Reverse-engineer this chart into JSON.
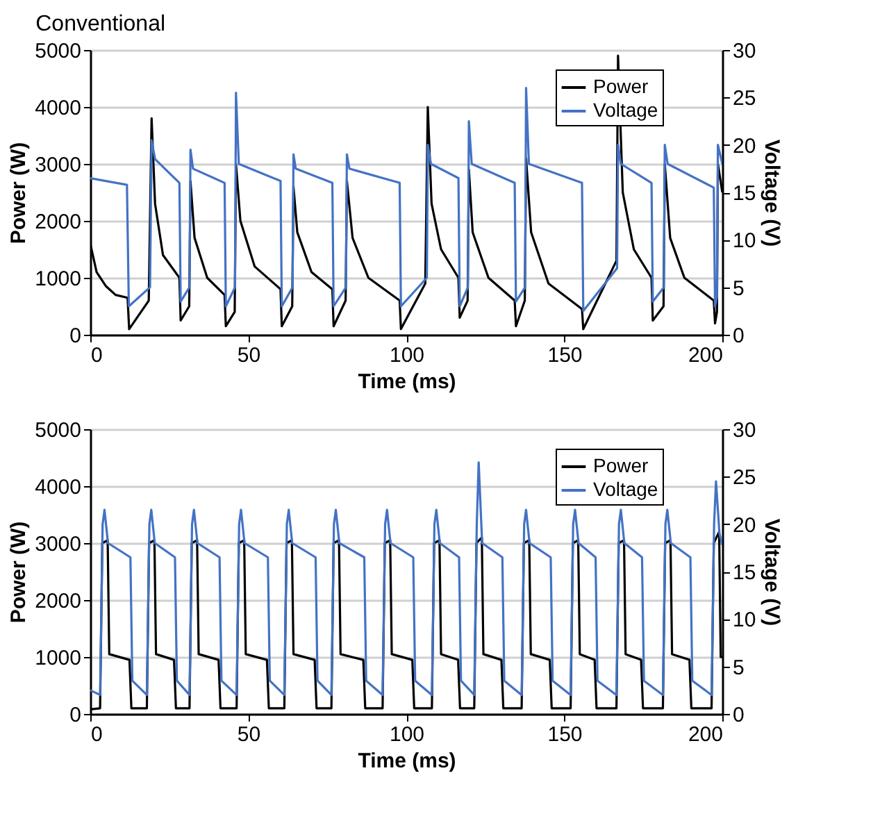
{
  "chart_data": [
    {
      "type": "line",
      "title": "Conventional",
      "xlabel": "Time (ms)",
      "ylabel": "Power (W)",
      "y2label": "Voltage (V)",
      "xlim": [
        0,
        200
      ],
      "xticks": [
        0,
        50,
        100,
        150,
        200
      ],
      "ylim": [
        0,
        5000
      ],
      "yticks": [
        0,
        1000,
        2000,
        3000,
        4000,
        5000
      ],
      "y2lim": [
        0,
        30
      ],
      "y2ticks": [
        0,
        5,
        10,
        15,
        20,
        25,
        30
      ],
      "grid": "y",
      "legend": "top right",
      "marker": "none",
      "line_style": "solid",
      "series": [
        {
          "name": "Power",
          "color": "#000000",
          "x": [
            0,
            2,
            5,
            8,
            11.8,
            12.3,
            18.5,
            19.4,
            20.5,
            23,
            28.2,
            28.6,
            31.3,
            31.7,
            33,
            37,
            42.5,
            42.9,
            45.7,
            46.1,
            47.5,
            52,
            60.2,
            60.6,
            63.9,
            64.3,
            65.5,
            70,
            76.6,
            77,
            80.8,
            81.2,
            83,
            88,
            97.9,
            98.3,
            106,
            106.8,
            108,
            111,
            116.5,
            116.9,
            119.4,
            119.8,
            121,
            126,
            134.3,
            134.7,
            137.5,
            137.9,
            139.5,
            145,
            155.6,
            156,
            166.5,
            167,
            168.5,
            172,
            177.6,
            178,
            181.4,
            181.8,
            183.5,
            188,
            197.3,
            197.7,
            198.3,
            198.6,
            200
          ],
          "values": [
            1600,
            1100,
            850,
            700,
            650,
            100,
            600,
            3800,
            2300,
            1400,
            1000,
            250,
            500,
            2700,
            1700,
            1000,
            700,
            150,
            400,
            3000,
            2000,
            1200,
            800,
            150,
            500,
            2600,
            1800,
            1100,
            800,
            150,
            600,
            2700,
            1700,
            1000,
            600,
            100,
            900,
            4000,
            2300,
            1500,
            1000,
            300,
            600,
            2900,
            1800,
            1000,
            600,
            150,
            600,
            3100,
            1800,
            900,
            450,
            100,
            1300,
            4900,
            2500,
            1500,
            1000,
            250,
            500,
            3000,
            1700,
            1000,
            600,
            200,
            400,
            3000,
            2500
          ]
        },
        {
          "name": "Voltage",
          "color": "#4472c4",
          "axis": "y2",
          "x": [
            0,
            11.6,
            12.2,
            18.9,
            19.4,
            20.5,
            28.2,
            28.6,
            31.4,
            31.7,
            32.5,
            42.5,
            42.9,
            45.8,
            46.1,
            47,
            60.2,
            60.6,
            64,
            64.3,
            65,
            76.6,
            77,
            80.9,
            81.2,
            82,
            97.9,
            98.3,
            106.5,
            106.8,
            107.8,
            116.5,
            116.9,
            119.5,
            119.8,
            120.7,
            134.3,
            134.7,
            137.6,
            137.9,
            138.8,
            155.6,
            156,
            166.7,
            167,
            167.9,
            177.6,
            178,
            181.5,
            181.8,
            182.7,
            197.3,
            197.7,
            198.3,
            198.6,
            200
          ],
          "values": [
            16.5,
            15.8,
            3,
            5,
            20.5,
            18.5,
            16,
            3.5,
            5,
            19.5,
            17.5,
            16,
            3,
            5,
            25.5,
            18,
            16.2,
            3,
            5,
            19,
            17.5,
            16,
            3,
            5,
            19,
            17.5,
            16,
            3,
            6,
            20,
            18,
            16.5,
            3,
            5,
            22.5,
            18,
            16,
            3.5,
            5,
            26,
            18,
            16,
            2.5,
            7,
            20,
            18,
            16,
            3.5,
            5,
            20,
            18,
            15.5,
            3,
            4,
            20,
            18
          ]
        }
      ]
    },
    {
      "type": "line",
      "xlabel": "Time (ms)",
      "ylabel": "Power (W)",
      "y2label": "Voltage (V)",
      "xlim": [
        0,
        200
      ],
      "xticks": [
        0,
        50,
        100,
        150,
        200
      ],
      "ylim": [
        0,
        5000
      ],
      "yticks": [
        0,
        1000,
        2000,
        3000,
        4000,
        5000
      ],
      "y2lim": [
        0,
        30
      ],
      "y2ticks": [
        0,
        5,
        10,
        15,
        20,
        25,
        30
      ],
      "grid": "y",
      "legend": "top right",
      "marker": "none",
      "line_style": "solid",
      "series": [
        {
          "name": "Power",
          "color": "#000000",
          "x": [
            0,
            3.1,
            3.8,
            5.5,
            6,
            12.4,
            13,
            17.9,
            18.6,
            20.3,
            20.8,
            26.5,
            27.1,
            31.4,
            32.1,
            33.8,
            34.3,
            40.6,
            41.2,
            46.3,
            47,
            48.7,
            49.2,
            55.9,
            56.5,
            61.4,
            62.1,
            63.8,
            64.3,
            71,
            71.6,
            76.3,
            77,
            78.7,
            79.2,
            86.4,
            87,
            92.5,
            93.2,
            94.9,
            95.4,
            101.9,
            102.5,
            108.1,
            108.8,
            110.5,
            111,
            116.4,
            117,
            121.5,
            122.2,
            123.9,
            124.4,
            130.1,
            130.7,
            136.5,
            137.2,
            138.9,
            139.4,
            145.4,
            146,
            152,
            152.7,
            154.4,
            154.9,
            159.6,
            160.2,
            166.5,
            167.2,
            168.9,
            169.4,
            174.3,
            174.9,
            181.2,
            181.9,
            183.6,
            184.1,
            189.6,
            190.2,
            196.6,
            197.3,
            199,
            199.5,
            200
          ],
          "values": [
            80,
            100,
            3000,
            3050,
            1050,
            950,
            100,
            100,
            3000,
            3050,
            1050,
            950,
            100,
            100,
            3000,
            3050,
            1050,
            950,
            100,
            100,
            3000,
            3050,
            1050,
            950,
            100,
            100,
            3000,
            3050,
            1050,
            950,
            100,
            100,
            3000,
            3050,
            1050,
            950,
            100,
            100,
            3000,
            3050,
            1050,
            950,
            100,
            100,
            3000,
            3050,
            1050,
            950,
            100,
            100,
            3000,
            3100,
            1050,
            950,
            100,
            100,
            3000,
            3050,
            1050,
            950,
            100,
            100,
            3000,
            3050,
            1050,
            950,
            100,
            100,
            3000,
            3050,
            1050,
            950,
            100,
            100,
            3000,
            3050,
            1050,
            950,
            100,
            100,
            3000,
            3200,
            1000,
            1000
          ]
        },
        {
          "name": "Voltage",
          "color": "#4472c4",
          "axis": "y2",
          "x": [
            0,
            3.1,
            3.9,
            4.5,
            5.6,
            12.7,
            13.3,
            17.9,
            18.7,
            19.3,
            20.4,
            26.8,
            27.4,
            31.4,
            32.2,
            32.8,
            33.9,
            40.9,
            41.5,
            46.3,
            47.1,
            47.7,
            48.8,
            56.2,
            56.8,
            61.4,
            62.2,
            62.8,
            63.9,
            71.3,
            71.9,
            76.3,
            77.1,
            77.7,
            78.8,
            86.7,
            87.3,
            92.5,
            93.3,
            93.9,
            95,
            102.2,
            102.8,
            108.1,
            108.9,
            109.5,
            110.6,
            116.7,
            117.3,
            121.5,
            122.3,
            122.9,
            124,
            130.4,
            131,
            136.5,
            137.3,
            137.9,
            139,
            145.7,
            146.3,
            152,
            152.8,
            153.4,
            154.5,
            159.9,
            160.5,
            166.5,
            167.3,
            167.9,
            169,
            174.6,
            175.2,
            181.2,
            182,
            182.6,
            183.7,
            189.9,
            190.5,
            196.6,
            197.4,
            198,
            199.1,
            200
          ],
          "values": [
            2.5,
            2,
            20,
            21.5,
            18,
            16.5,
            3.5,
            2,
            20,
            21.5,
            18,
            16.5,
            3.5,
            2,
            20,
            21.5,
            18,
            16.5,
            3.5,
            2,
            20,
            21.5,
            18,
            16.5,
            3.5,
            2,
            20,
            21.5,
            18,
            16.5,
            3.5,
            2,
            20,
            21.5,
            18,
            16.5,
            3.5,
            2,
            20,
            21.5,
            18,
            16.5,
            3.5,
            2,
            20,
            21.5,
            18,
            16.5,
            3.5,
            2,
            20,
            26.5,
            18,
            16.5,
            3.5,
            2,
            20,
            21.5,
            18,
            16.5,
            3.5,
            2,
            20,
            21.5,
            18,
            16.5,
            3.5,
            2,
            20,
            21.5,
            18,
            16.5,
            3.5,
            2,
            20,
            21.5,
            18,
            16.5,
            3.5,
            2,
            20,
            24.5,
            19,
            17.8
          ]
        }
      ]
    }
  ]
}
